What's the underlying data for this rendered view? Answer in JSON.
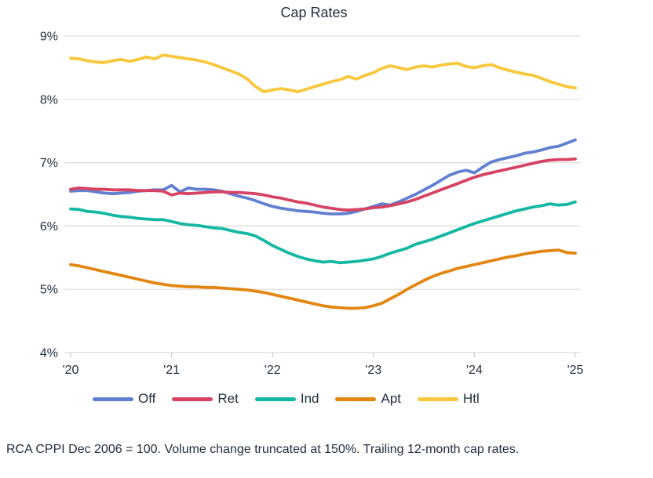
{
  "title": "Cap Rates",
  "footer": "RCA CPPI Dec 2006 = 100. Volume change truncated at 150%. Trailing 12-month cap rates.",
  "colors": {
    "off": "#6180d1",
    "ret": "#d64363",
    "ind": "#14b8a2",
    "apt": "#e28610",
    "htl": "#f9c73c",
    "gridline": "#dcdcdc",
    "tick_mark": "#c9c9c9",
    "text": "#1f2c3c"
  },
  "chart_data": {
    "type": "line",
    "title": "Cap Rates",
    "xlabel": "",
    "ylabel": "",
    "grid": "horizontal",
    "legend_position": "bottom",
    "ylim": [
      4,
      9
    ],
    "x_start": "2020-01",
    "x_end": "2025-01",
    "x_interval": "monthly",
    "x_ticks": [
      "'20",
      "'21",
      "'22",
      "'23",
      "'24",
      "'25"
    ],
    "y_ticks": [
      {
        "value": 9,
        "label": "9%"
      },
      {
        "value": 8,
        "label": "8%"
      },
      {
        "value": 7,
        "label": "7%"
      },
      {
        "value": 6,
        "label": "6%"
      },
      {
        "value": 5,
        "label": "5%"
      },
      {
        "value": 4,
        "label": "4%"
      }
    ],
    "series": [
      {
        "name": "Off",
        "color": "#6180d1",
        "values": [
          6.55,
          6.56,
          6.56,
          6.54,
          6.52,
          6.51,
          6.52,
          6.53,
          6.55,
          6.56,
          6.57,
          6.57,
          6.64,
          6.54,
          6.6,
          6.58,
          6.58,
          6.57,
          6.55,
          6.51,
          6.47,
          6.44,
          6.4,
          6.35,
          6.31,
          6.28,
          6.26,
          6.24,
          6.23,
          6.22,
          6.2,
          6.19,
          6.19,
          6.2,
          6.23,
          6.27,
          6.31,
          6.35,
          6.33,
          6.38,
          6.44,
          6.5,
          6.57,
          6.64,
          6.72,
          6.8,
          6.85,
          6.88,
          6.84,
          6.93,
          7.01,
          7.05,
          7.08,
          7.11,
          7.15,
          7.17,
          7.2,
          7.24,
          7.26,
          7.31,
          7.36
        ]
      },
      {
        "name": "Ret",
        "color": "#d64363",
        "values": [
          6.58,
          6.6,
          6.59,
          6.58,
          6.58,
          6.57,
          6.57,
          6.57,
          6.56,
          6.56,
          6.56,
          6.55,
          6.49,
          6.52,
          6.51,
          6.52,
          6.53,
          6.54,
          6.54,
          6.53,
          6.53,
          6.52,
          6.51,
          6.49,
          6.46,
          6.44,
          6.41,
          6.38,
          6.36,
          6.33,
          6.3,
          6.28,
          6.26,
          6.25,
          6.26,
          6.27,
          6.29,
          6.3,
          6.32,
          6.35,
          6.38,
          6.42,
          6.47,
          6.52,
          6.57,
          6.62,
          6.67,
          6.72,
          6.77,
          6.81,
          6.84,
          6.87,
          6.9,
          6.93,
          6.96,
          6.99,
          7.02,
          7.04,
          7.05,
          7.05,
          7.06
        ]
      },
      {
        "name": "Ind",
        "color": "#14b8a2",
        "values": [
          6.27,
          6.26,
          6.23,
          6.22,
          6.2,
          6.17,
          6.15,
          6.14,
          6.12,
          6.11,
          6.1,
          6.1,
          6.07,
          6.04,
          6.02,
          6.01,
          5.99,
          5.97,
          5.96,
          5.93,
          5.9,
          5.88,
          5.84,
          5.77,
          5.69,
          5.63,
          5.57,
          5.52,
          5.48,
          5.45,
          5.43,
          5.44,
          5.42,
          5.43,
          5.44,
          5.46,
          5.48,
          5.52,
          5.57,
          5.61,
          5.65,
          5.71,
          5.75,
          5.79,
          5.84,
          5.89,
          5.94,
          5.99,
          6.04,
          6.08,
          6.12,
          6.16,
          6.2,
          6.24,
          6.27,
          6.3,
          6.32,
          6.35,
          6.33,
          6.34,
          6.38
        ]
      },
      {
        "name": "Apt",
        "color": "#e28610",
        "values": [
          5.39,
          5.37,
          5.34,
          5.31,
          5.28,
          5.25,
          5.22,
          5.19,
          5.16,
          5.13,
          5.1,
          5.08,
          5.06,
          5.05,
          5.04,
          5.04,
          5.03,
          5.03,
          5.02,
          5.01,
          5.0,
          4.99,
          4.97,
          4.95,
          4.92,
          4.89,
          4.86,
          4.83,
          4.8,
          4.77,
          4.74,
          4.72,
          4.71,
          4.7,
          4.7,
          4.71,
          4.74,
          4.78,
          4.85,
          4.92,
          5.0,
          5.07,
          5.14,
          5.2,
          5.25,
          5.29,
          5.33,
          5.36,
          5.39,
          5.42,
          5.45,
          5.48,
          5.51,
          5.53,
          5.56,
          5.58,
          5.6,
          5.61,
          5.62,
          5.58,
          5.57
        ]
      },
      {
        "name": "Htl",
        "color": "#f9c73c",
        "values": [
          8.65,
          8.64,
          8.61,
          8.59,
          8.58,
          8.61,
          8.63,
          8.6,
          8.63,
          8.67,
          8.64,
          8.7,
          8.68,
          8.66,
          8.64,
          8.62,
          8.59,
          8.55,
          8.5,
          8.45,
          8.4,
          8.32,
          8.2,
          8.12,
          8.15,
          8.17,
          8.15,
          8.12,
          8.16,
          8.2,
          8.24,
          8.28,
          8.31,
          8.36,
          8.32,
          8.38,
          8.42,
          8.49,
          8.53,
          8.5,
          8.47,
          8.51,
          8.53,
          8.51,
          8.54,
          8.56,
          8.57,
          8.52,
          8.5,
          8.53,
          8.55,
          8.5,
          8.46,
          8.43,
          8.4,
          8.38,
          8.33,
          8.28,
          8.24,
          8.2,
          8.18
        ]
      }
    ]
  }
}
